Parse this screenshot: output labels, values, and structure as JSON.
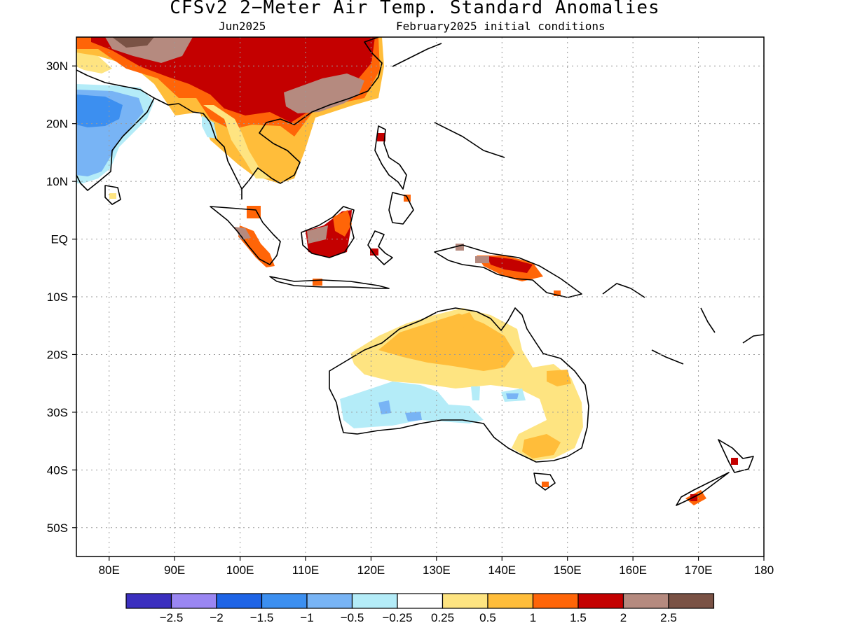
{
  "title": "CFSv2 2−Meter Air Temp. Standard Anomalies",
  "subtitle_left": "Jun2025",
  "subtitle_right": "February2025 initial conditions",
  "map": {
    "lon_range": [
      75,
      180
    ],
    "lat_range": [
      -55,
      35
    ],
    "x_ticks": [
      {
        "lon": 80,
        "label": "80E"
      },
      {
        "lon": 90,
        "label": "90E"
      },
      {
        "lon": 100,
        "label": "100E"
      },
      {
        "lon": 110,
        "label": "110E"
      },
      {
        "lon": 120,
        "label": "120E"
      },
      {
        "lon": 130,
        "label": "130E"
      },
      {
        "lon": 140,
        "label": "140E"
      },
      {
        "lon": 150,
        "label": "150E"
      },
      {
        "lon": 160,
        "label": "160E"
      },
      {
        "lon": 170,
        "label": "170E"
      },
      {
        "lon": 180,
        "label": "180"
      }
    ],
    "y_ticks": [
      {
        "lat": 30,
        "label": "30N"
      },
      {
        "lat": 20,
        "label": "20N"
      },
      {
        "lat": 10,
        "label": "10N"
      },
      {
        "lat": 0,
        "label": "EQ"
      },
      {
        "lat": -10,
        "label": "10S"
      },
      {
        "lat": -20,
        "label": "20S"
      },
      {
        "lat": -30,
        "label": "30S"
      },
      {
        "lat": -40,
        "label": "40S"
      },
      {
        "lat": -50,
        "label": "50S"
      }
    ],
    "grid": "dotted"
  },
  "colorbar": {
    "colors": [
      "#3b2fbf",
      "#9a86f2",
      "#1e64e6",
      "#3c8ff0",
      "#78b4f5",
      "#b4ecf8",
      "#ffffff",
      "#fee481",
      "#ffbd3a",
      "#ff6508",
      "#c40000",
      "#b58a7f",
      "#7a5245"
    ],
    "labels": [
      "−2.5",
      "−2",
      "−1.5",
      "−1",
      "−0.5",
      "−0.25",
      "0.25",
      "0.5",
      "1",
      "1.5",
      "2",
      "2.5"
    ]
  }
}
